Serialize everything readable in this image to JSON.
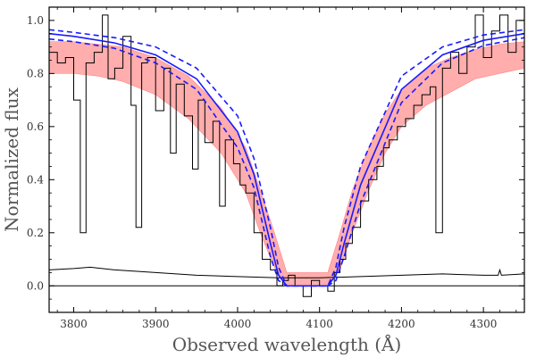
{
  "chart_data": {
    "type": "line",
    "title": "",
    "xlabel": "Observed wavelength (Å)",
    "ylabel": "Normalized flux",
    "xlim": [
      3770,
      4350
    ],
    "ylim": [
      -0.1,
      1.05
    ],
    "grid": false,
    "legend": "none",
    "x_ticks": [
      3800,
      3900,
      4000,
      4100,
      4200,
      4300
    ],
    "x_tick_labels": [
      "3800",
      "3900",
      "4000",
      "4100",
      "4200",
      "4300"
    ],
    "y_ticks": [
      0.0,
      0.2,
      0.4,
      0.6,
      0.8,
      1.0
    ],
    "y_tick_labels": [
      "0.0",
      "0.2",
      "0.4",
      "0.6",
      "0.8",
      "1.0"
    ],
    "reference_line_y": 0.0,
    "colors": {
      "observed": "#000000",
      "fill": "#ff6a6a",
      "model": "#1a1aff",
      "error": "#000000",
      "zero": "#000000"
    },
    "series": [
      {
        "name": "Observed spectrum",
        "style": "steps-black",
        "x": [
          3770,
          3780,
          3790,
          3800,
          3808,
          3815,
          3825,
          3835,
          3842,
          3850,
          3860,
          3870,
          3876,
          3883,
          3890,
          3900,
          3910,
          3918,
          3925,
          3935,
          3945,
          3952,
          3960,
          3970,
          3978,
          3985,
          3995,
          4003,
          4010,
          4020,
          4030,
          4040,
          4048,
          4055,
          4062,
          4070,
          4080,
          4090,
          4100,
          4110,
          4118,
          4125,
          4132,
          4140,
          4150,
          4160,
          4170,
          4178,
          4185,
          4195,
          4205,
          4215,
          4225,
          4235,
          4242,
          4250,
          4260,
          4270,
          4280,
          4290,
          4300,
          4310,
          4320,
          4330,
          4340,
          4350
        ],
        "values": [
          0.88,
          0.84,
          0.86,
          0.7,
          0.2,
          0.84,
          0.88,
          1.02,
          0.78,
          0.82,
          0.94,
          0.68,
          0.22,
          0.84,
          0.86,
          0.66,
          0.82,
          0.5,
          0.76,
          0.64,
          0.44,
          0.7,
          0.54,
          0.62,
          0.3,
          0.55,
          0.46,
          0.38,
          0.35,
          0.2,
          0.1,
          0.06,
          0.0,
          0.02,
          0.04,
          0.0,
          -0.04,
          0.02,
          0.0,
          -0.02,
          0.05,
          0.1,
          0.16,
          0.22,
          0.32,
          0.4,
          0.45,
          0.52,
          0.55,
          0.6,
          0.63,
          0.68,
          0.72,
          0.75,
          0.2,
          0.82,
          0.88,
          0.8,
          0.9,
          1.02,
          0.86,
          0.96,
          1.02,
          0.88,
          1.0,
          0.92
        ]
      },
      {
        "name": "Spectrum uncertainty band",
        "style": "band-red",
        "x": [
          3770,
          3800,
          3830,
          3860,
          3900,
          3940,
          3980,
          4010,
          4030,
          4045,
          4060,
          4110,
          4125,
          4140,
          4160,
          4180,
          4200,
          4230,
          4260,
          4290,
          4320,
          4350
        ],
        "lower": [
          0.8,
          0.8,
          0.79,
          0.77,
          0.72,
          0.63,
          0.5,
          0.35,
          0.18,
          0.07,
          0.0,
          0.0,
          0.06,
          0.2,
          0.36,
          0.5,
          0.6,
          0.68,
          0.73,
          0.78,
          0.8,
          0.82
        ],
        "upper": [
          0.92,
          0.92,
          0.91,
          0.9,
          0.86,
          0.79,
          0.67,
          0.52,
          0.34,
          0.2,
          0.05,
          0.05,
          0.2,
          0.36,
          0.52,
          0.65,
          0.74,
          0.82,
          0.86,
          0.89,
          0.91,
          0.92
        ]
      },
      {
        "name": "Model fit",
        "style": "solid-blue",
        "x": [
          3770,
          3800,
          3850,
          3900,
          3950,
          4000,
          4020,
          4040,
          4050,
          4060,
          4110,
          4120,
          4130,
          4150,
          4200,
          4250,
          4300,
          4350
        ],
        "values": [
          0.95,
          0.94,
          0.915,
          0.87,
          0.78,
          0.58,
          0.42,
          0.16,
          0.04,
          0.0,
          0.0,
          0.04,
          0.16,
          0.38,
          0.74,
          0.87,
          0.925,
          0.95
        ]
      },
      {
        "name": "Model upper bound",
        "style": "dashed-blue",
        "x": [
          3770,
          3800,
          3850,
          3900,
          3950,
          4000,
          4020,
          4040,
          4050,
          4060,
          4110,
          4120,
          4130,
          4150,
          4200,
          4250,
          4300,
          4350
        ],
        "values": [
          0.965,
          0.955,
          0.935,
          0.9,
          0.82,
          0.64,
          0.48,
          0.22,
          0.07,
          0.0,
          0.0,
          0.07,
          0.22,
          0.45,
          0.79,
          0.9,
          0.945,
          0.965
        ]
      },
      {
        "name": "Model lower bound",
        "style": "dashed-blue",
        "x": [
          3770,
          3800,
          3850,
          3900,
          3950,
          4000,
          4020,
          4040,
          4050,
          4060,
          4110,
          4120,
          4130,
          4150,
          4200,
          4250,
          4300,
          4350
        ],
        "values": [
          0.93,
          0.92,
          0.895,
          0.84,
          0.74,
          0.52,
          0.37,
          0.11,
          0.02,
          0.0,
          0.0,
          0.02,
          0.11,
          0.31,
          0.69,
          0.84,
          0.905,
          0.935
        ]
      },
      {
        "name": "Error spectrum",
        "style": "thin-black",
        "x": [
          3770,
          3800,
          3820,
          3850,
          3900,
          3950,
          4000,
          4050,
          4100,
          4150,
          4200,
          4250,
          4300,
          4318,
          4320,
          4322,
          4350
        ],
        "values": [
          0.06,
          0.065,
          0.07,
          0.06,
          0.05,
          0.04,
          0.035,
          0.03,
          0.03,
          0.035,
          0.04,
          0.045,
          0.04,
          0.04,
          0.06,
          0.04,
          0.045
        ]
      }
    ]
  }
}
